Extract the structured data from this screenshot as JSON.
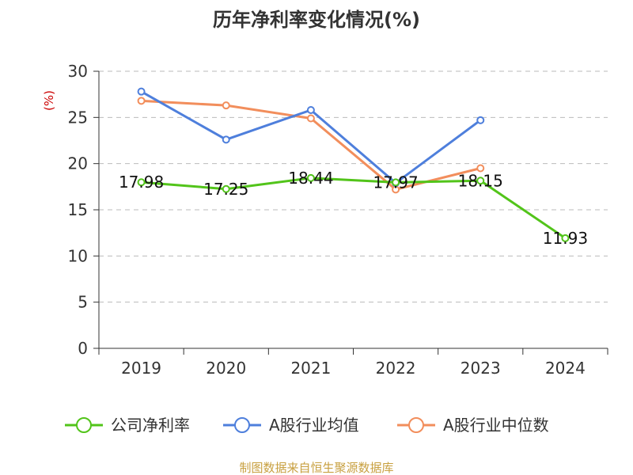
{
  "chart_data": {
    "type": "line",
    "title": "历年净利率变化情况(%)",
    "ylabel": "(%)",
    "xlabel": "",
    "categories": [
      "2019",
      "2020",
      "2021",
      "2022",
      "2023",
      "2024"
    ],
    "ylim": [
      0,
      30
    ],
    "yticks": [
      "0",
      "5",
      "10",
      "15",
      "20",
      "25",
      "30"
    ],
    "grid": true,
    "legend_position": "bottom",
    "source": "制图数据来自恒生聚源数据库",
    "series": [
      {
        "name": "公司净利率",
        "color": "#52c41a",
        "values": [
          17.98,
          17.25,
          18.44,
          17.97,
          18.15,
          11.93
        ],
        "labels": [
          "17.98",
          "17.25",
          "18.44",
          "17.97",
          "18.15",
          "11.93"
        ]
      },
      {
        "name": "A股行业均值",
        "color": "#4e7fdc",
        "values": [
          27.8,
          22.6,
          25.8,
          17.9,
          24.7,
          null
        ]
      },
      {
        "name": "A股行业中位数",
        "color": "#f28e5c",
        "values": [
          26.8,
          26.3,
          24.9,
          17.2,
          19.5,
          null
        ]
      }
    ]
  }
}
